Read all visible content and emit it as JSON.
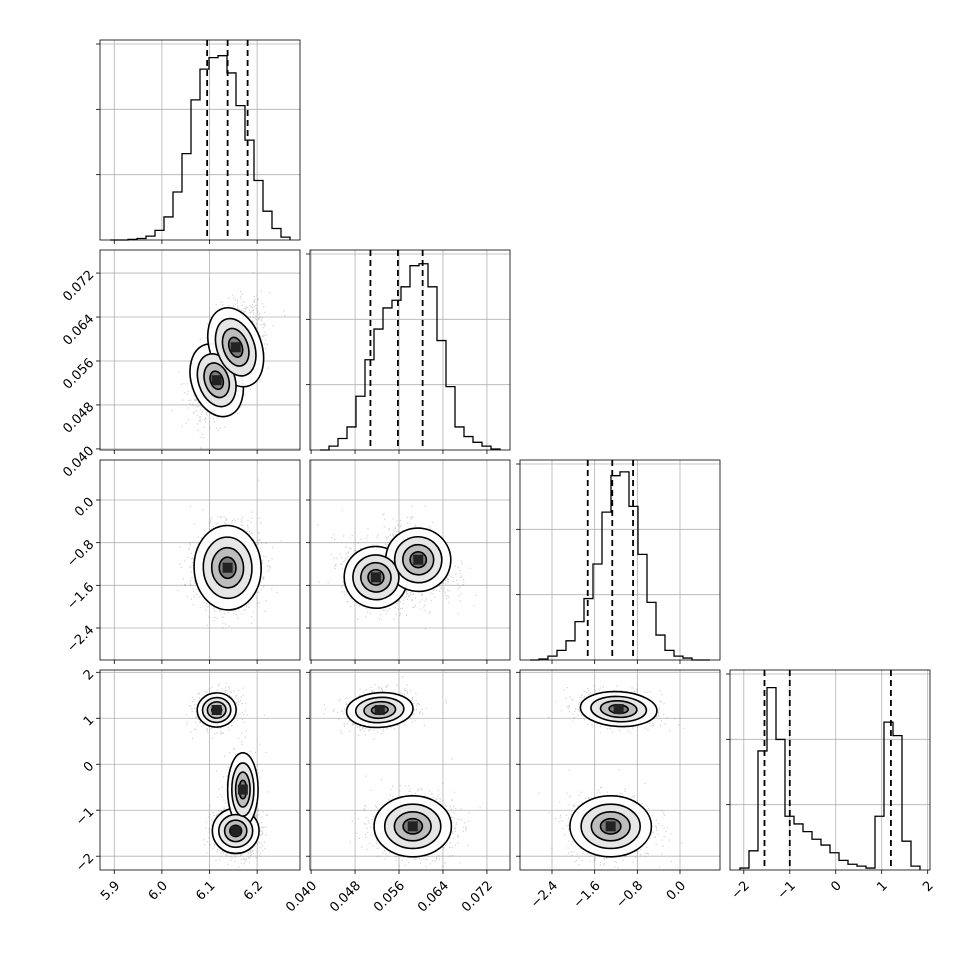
{
  "chart_data": {
    "type": "corner",
    "grid": true,
    "parameters": [
      {
        "range": [
          5.87,
          6.29
        ],
        "ticks": [
          5.9,
          6.0,
          6.1,
          6.2
        ],
        "tick_labels": [
          "5.9",
          "6.0",
          "6.1",
          "6.2"
        ],
        "quantiles": [
          6.095,
          6.138,
          6.18
        ],
        "histogram": [
          0,
          0,
          0.003,
          0.008,
          0.02,
          0.05,
          0.12,
          0.25,
          0.45,
          0.73,
          0.89,
          0.95,
          0.96,
          0.87,
          0.7,
          0.52,
          0.31,
          0.15,
          0.06,
          0.015
        ]
      },
      {
        "range": [
          0.0398,
          0.0762
        ],
        "ticks": [
          0.04,
          0.048,
          0.056,
          0.064,
          0.072
        ],
        "tick_labels": [
          "0.040",
          "0.048",
          "0.056",
          "0.064",
          "0.072"
        ],
        "quantiles": [
          0.0508,
          0.0558,
          0.0603
        ],
        "histogram": [
          0,
          0.02,
          0.06,
          0.12,
          0.28,
          0.47,
          0.63,
          0.74,
          0.78,
          0.85,
          0.96,
          0.97,
          0.85,
          0.57,
          0.33,
          0.12,
          0.07,
          0.04,
          0.02,
          0.005
        ]
      },
      {
        "range": [
          -3.0,
          0.75
        ],
        "ticks": [
          -2.4,
          -1.6,
          -0.8,
          0.0
        ],
        "tick_labels": [
          "−2.4",
          "−1.6",
          "−0.8",
          "0.0"
        ],
        "quantiles": [
          -1.73,
          -1.27,
          -0.88
        ],
        "histogram": [
          0,
          0.005,
          0.02,
          0.05,
          0.1,
          0.2,
          0.32,
          0.5,
          0.77,
          0.96,
          0.98,
          0.8,
          0.55,
          0.3,
          0.13,
          0.05,
          0.02,
          0.01,
          0,
          0
        ]
      },
      {
        "range": [
          -2.3,
          2.05
        ],
        "ticks": [
          -2,
          -1,
          0,
          1,
          2
        ],
        "tick_labels": [
          "−2",
          "−1",
          "0",
          "1",
          "2"
        ],
        "quantiles": [
          -1.55,
          -1.0,
          1.2
        ],
        "histogram": [
          0.01,
          0.1,
          0.62,
          0.95,
          0.68,
          0.28,
          0.24,
          0.2,
          0.16,
          0.13,
          0.09,
          0.05,
          0.03,
          0.02,
          0.01,
          0.28,
          0.77,
          0.7,
          0.15,
          0.02
        ]
      }
    ],
    "pairs": [
      {
        "x": 0,
        "y": 1,
        "modes": [
          {
            "w": 0.38,
            "mx": 6.115,
            "my": 0.0525,
            "sx": 0.028,
            "sy": 0.0036,
            "rho": 0.4
          },
          {
            "w": 0.62,
            "mx": 6.155,
            "my": 0.0585,
            "sx": 0.027,
            "sy": 0.0037,
            "rho": 0.4
          }
        ]
      },
      {
        "x": 0,
        "y": 2,
        "modes": [
          {
            "w": 1.0,
            "mx": 6.138,
            "my": -1.27,
            "sx": 0.032,
            "sy": 0.36,
            "rho": 0.05
          }
        ]
      },
      {
        "x": 1,
        "y": 2,
        "modes": [
          {
            "w": 0.45,
            "mx": 0.0518,
            "my": -1.45,
            "sx": 0.003,
            "sy": 0.3,
            "rho": -0.35
          },
          {
            "w": 0.55,
            "mx": 0.0595,
            "my": -1.12,
            "sx": 0.003,
            "sy": 0.3,
            "rho": -0.35
          }
        ]
      },
      {
        "x": 0,
        "y": 3,
        "modes": [
          {
            "w": 0.38,
            "mx": 6.115,
            "my": 1.18,
            "sx": 0.022,
            "sy": 0.2,
            "rho": 0.1
          },
          {
            "w": 0.62,
            "mx": 6.155,
            "my": -1.45,
            "sx": 0.025,
            "sy": 0.25,
            "rho": 0.0
          },
          {
            "w": 0.18,
            "mx": 6.17,
            "my": -0.55,
            "sx": 0.018,
            "sy": 0.45,
            "rho": 0.0
          }
        ]
      },
      {
        "x": 1,
        "y": 3,
        "modes": [
          {
            "w": 0.38,
            "mx": 0.0525,
            "my": 1.18,
            "sx": 0.0032,
            "sy": 0.2,
            "rho": 0.2
          },
          {
            "w": 0.62,
            "mx": 0.0585,
            "my": -1.35,
            "sx": 0.0035,
            "sy": 0.33,
            "rho": 0.0
          }
        ]
      },
      {
        "x": 2,
        "y": 3,
        "modes": [
          {
            "w": 0.38,
            "mx": -1.15,
            "my": 1.2,
            "sx": 0.38,
            "sy": 0.2,
            "rho": -0.2
          },
          {
            "w": 0.62,
            "mx": -1.3,
            "my": -1.35,
            "sx": 0.38,
            "sy": 0.33,
            "rho": 0.0
          }
        ]
      }
    ]
  }
}
